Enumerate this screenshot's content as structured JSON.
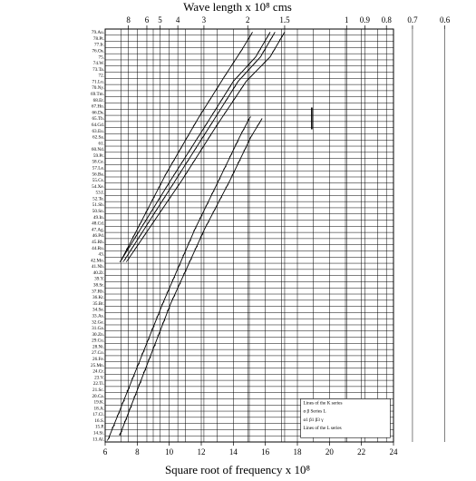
{
  "chart_data": {
    "type": "line",
    "title": "Wave length x 10⁸ cms",
    "xlabel": "Square root of frequency x 10⁸",
    "ylabel": "",
    "xlim": [
      6,
      24
    ],
    "x_ticks": [
      6,
      8,
      10,
      12,
      14,
      16,
      18,
      20,
      22,
      24
    ],
    "top_axis_ticks": [
      {
        "label": "8",
        "wavelength": 8
      },
      {
        "label": "6",
        "wavelength": 6
      },
      {
        "label": "5",
        "wavelength": 5
      },
      {
        "label": "4",
        "wavelength": 4
      },
      {
        "label": "3",
        "wavelength": 3
      },
      {
        "label": "2",
        "wavelength": 2
      },
      {
        "label": "1.5",
        "wavelength": 1.5
      },
      {
        "label": "1",
        "wavelength": 1
      },
      {
        "label": "0.9",
        "wavelength": 0.9
      },
      {
        "label": "0.8",
        "wavelength": 0.8
      },
      {
        "label": "0.7",
        "wavelength": 0.7
      },
      {
        "label": "0.6",
        "wavelength": 0.6
      }
    ],
    "y_labels": [
      "79.Au.",
      "78.Pt.",
      "77.Ir.",
      "76.Os.",
      "75.",
      "74.W.",
      "73.Ta.",
      "72.",
      "71.Lu.",
      "70.Ny.",
      "69.Tm.",
      "68.Er.",
      "67.Ho.",
      "66.Ds.",
      "65.Tb.",
      "64.Gd.",
      "63.Eu.",
      "62.Sa.",
      "61.",
      "60.Nd.",
      "59.Pr.",
      "58.Ce.",
      "57.La.",
      "56.Ba.",
      "55.Cs.",
      "54.Xe.",
      "53.I.",
      "52.Te.",
      "51.Sb.",
      "50.Sn.",
      "49.In.",
      "48.Cd.",
      "47.Ag.",
      "46.Pd.",
      "45.Rh.",
      "44.Ru.",
      "43.",
      "42.Mo.",
      "41.Nb.",
      "40.Zr.",
      "39.Y.",
      "38.Sr.",
      "37.Rb.",
      "36.Kr.",
      "35.Br.",
      "34.Se.",
      "33.As.",
      "32.Ge.",
      "31.Ga.",
      "30.Zn.",
      "29.Cu.",
      "28.Ni.",
      "27.Co.",
      "26.Fe.",
      "25.Mn.",
      "24.Cr.",
      "23.V.",
      "22.Ti.",
      "21.Sc.",
      "20.Ca.",
      "19.K.",
      "18.A.",
      "17.Cl.",
      "16.S.",
      "15.P.",
      "14.Si.",
      "13.Al."
    ],
    "series": [
      {
        "points": [
          [
            6.2,
            13
          ],
          [
            9.6,
            35
          ],
          [
            11.6,
            47
          ],
          [
            13.1,
            55
          ],
          [
            14.4,
            62
          ],
          [
            15.0,
            65
          ]
        ]
      },
      {
        "points": [
          [
            6.9,
            13.5
          ],
          [
            10.1,
            35
          ],
          [
            12.2,
            47
          ],
          [
            13.8,
            55
          ],
          [
            15.1,
            62
          ],
          [
            15.8,
            65
          ]
        ]
      },
      {
        "points": [
          [
            7.0,
            42
          ],
          [
            9.8,
            56
          ],
          [
            11.8,
            65
          ],
          [
            13.5,
            72
          ],
          [
            14.5,
            76
          ],
          [
            15.2,
            79
          ]
        ]
      },
      {
        "points": [
          [
            7.0,
            42
          ],
          [
            10.1,
            55
          ],
          [
            12.3,
            64
          ],
          [
            14.0,
            71
          ],
          [
            15.4,
            75
          ],
          [
            16.3,
            79
          ]
        ]
      },
      {
        "points": [
          [
            7.2,
            42
          ],
          [
            10.4,
            55
          ],
          [
            12.6,
            64
          ],
          [
            14.3,
            71
          ],
          [
            15.7,
            75
          ],
          [
            16.6,
            79
          ]
        ]
      },
      {
        "points": [
          [
            7.4,
            42
          ],
          [
            10.8,
            55
          ],
          [
            13.0,
            64
          ],
          [
            14.8,
            71
          ],
          [
            16.3,
            75
          ],
          [
            17.2,
            79
          ]
        ]
      }
    ],
    "annotations": [
      {
        "x": 18.9,
        "y": 65,
        "text": "short vertical mark"
      }
    ],
    "legend_box": {
      "lines": [
        "Lines of the K series",
        "α   β   Series   L",
        "α1 β1   β3 γ",
        "Lines of the L series"
      ]
    },
    "grid": true
  }
}
